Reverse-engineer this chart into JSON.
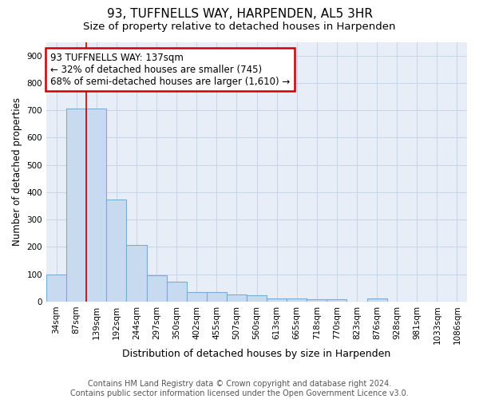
{
  "title": "93, TUFFNELLS WAY, HARPENDEN, AL5 3HR",
  "subtitle": "Size of property relative to detached houses in Harpenden",
  "xlabel": "Distribution of detached houses by size in Harpenden",
  "ylabel": "Number of detached properties",
  "categories": [
    "34sqm",
    "87sqm",
    "139sqm",
    "192sqm",
    "244sqm",
    "297sqm",
    "350sqm",
    "402sqm",
    "455sqm",
    "507sqm",
    "560sqm",
    "613sqm",
    "665sqm",
    "718sqm",
    "770sqm",
    "823sqm",
    "876sqm",
    "928sqm",
    "981sqm",
    "1033sqm",
    "1086sqm"
  ],
  "values": [
    100,
    706,
    706,
    373,
    208,
    97,
    72,
    35,
    35,
    27,
    24,
    12,
    12,
    10,
    10,
    0,
    11,
    0,
    0,
    0,
    0
  ],
  "bar_color": "#c8daf0",
  "bar_edgecolor": "#7aadd4",
  "property_line_color": "#cc0000",
  "property_bar_index": 2,
  "annotation_text": "93 TUFFNELLS WAY: 137sqm\n← 32% of detached houses are smaller (745)\n68% of semi-detached houses are larger (1,610) →",
  "annotation_box_edgecolor": "#cc0000",
  "annotation_facecolor": "white",
  "ylim": [
    0,
    950
  ],
  "yticks": [
    0,
    100,
    200,
    300,
    400,
    500,
    600,
    700,
    800,
    900
  ],
  "grid_color": "#c8d4e8",
  "background_color": "#e8eef8",
  "footnote": "Contains HM Land Registry data © Crown copyright and database right 2024.\nContains public sector information licensed under the Open Government Licence v3.0.",
  "title_fontsize": 11,
  "subtitle_fontsize": 9.5,
  "xlabel_fontsize": 9,
  "ylabel_fontsize": 8.5,
  "tick_fontsize": 7.5,
  "annotation_fontsize": 8.5,
  "footnote_fontsize": 7
}
